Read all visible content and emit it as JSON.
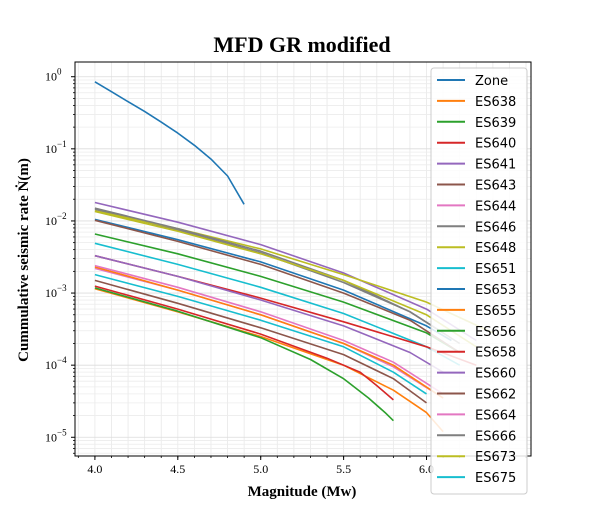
{
  "chart_data": {
    "type": "line",
    "title": "MFD GR modified",
    "xlabel": "Magnitude (Mw)",
    "ylabel": "Cummulative seismic rate Ṅ(m)",
    "xlim": [
      3.88,
      6.63
    ],
    "ylim": [
      5.5e-06,
      1.6
    ],
    "yscale": "log",
    "grid": true,
    "legend_position": "upper-right",
    "x_ticks": [
      "4.0",
      "4.5",
      "5.0",
      "5.5",
      "6.0"
    ],
    "x_tick_values": [
      4.0,
      4.5,
      5.0,
      5.5,
      6.0
    ],
    "y_ticks": [
      {
        "base": "10",
        "exp": "0",
        "value": 1
      },
      {
        "base": "10",
        "exp": "−1",
        "value": 0.1
      },
      {
        "base": "10",
        "exp": "−2",
        "value": 0.01
      },
      {
        "base": "10",
        "exp": "−3",
        "value": 0.001
      },
      {
        "base": "10",
        "exp": "−4",
        "value": 0.0001
      },
      {
        "base": "10",
        "exp": "−5",
        "value": 1e-05
      }
    ],
    "series": [
      {
        "name": "Zone",
        "color": "#1f77b4",
        "x": [
          4.0,
          4.1,
          4.2,
          4.3,
          4.4,
          4.5,
          4.6,
          4.7,
          4.8,
          4.9
        ],
        "y": [
          0.85,
          0.62,
          0.45,
          0.33,
          0.235,
          0.165,
          0.112,
          0.072,
          0.042,
          0.017
        ]
      },
      {
        "name": "ES638",
        "color": "#ff7f0e",
        "x": [
          4.0,
          4.5,
          5.0,
          5.5,
          5.8,
          6.0,
          6.1
        ],
        "y": [
          0.00115,
          0.00055,
          0.00025,
          0.0001,
          4.5e-05,
          2.2e-05,
          1.2e-05
        ]
      },
      {
        "name": "ES639",
        "color": "#2ca02c",
        "x": [
          4.0,
          4.5,
          5.0,
          5.3,
          5.5,
          5.65,
          5.75,
          5.8
        ],
        "y": [
          0.00118,
          0.00056,
          0.00024,
          0.00012,
          6.5e-05,
          3.5e-05,
          2.2e-05,
          1.7e-05
        ]
      },
      {
        "name": "ES640",
        "color": "#d62728",
        "x": [
          4.0,
          4.5,
          5.0,
          5.4,
          5.6,
          5.7,
          5.8
        ],
        "y": [
          0.00125,
          0.0006,
          0.00027,
          0.000125,
          8e-05,
          5.2e-05,
          3.3e-05
        ]
      },
      {
        "name": "ES641",
        "color": "#9467bd",
        "x": [
          4.0,
          4.5,
          5.0,
          5.5,
          6.0,
          6.3
        ],
        "y": [
          0.018,
          0.0096,
          0.0047,
          0.0019,
          0.0006,
          0.00022
        ]
      },
      {
        "name": "ES643",
        "color": "#8c564b",
        "x": [
          4.0,
          4.5,
          5.0,
          5.5,
          5.8,
          6.0
        ],
        "y": [
          0.0015,
          0.00072,
          0.00033,
          0.00014,
          6.5e-05,
          3e-05
        ]
      },
      {
        "name": "ES644",
        "color": "#e377c2",
        "x": [
          4.0,
          4.5,
          5.0,
          5.5,
          5.8,
          6.1
        ],
        "y": [
          0.0022,
          0.0011,
          0.0005,
          0.0002,
          9.5e-05,
          3.5e-05
        ]
      },
      {
        "name": "ES646",
        "color": "#7f7f7f",
        "x": [
          4.0,
          4.5,
          5.0,
          5.5,
          5.9,
          6.1
        ],
        "y": [
          0.0145,
          0.0075,
          0.0036,
          0.0014,
          0.00055,
          0.00028
        ]
      },
      {
        "name": "ES648",
        "color": "#bcbd22",
        "x": [
          4.0,
          4.5,
          5.0,
          5.5,
          6.0,
          6.4
        ],
        "y": [
          0.0138,
          0.0078,
          0.0041,
          0.0018,
          0.00075,
          0.00028
        ]
      },
      {
        "name": "ES651",
        "color": "#17becf",
        "x": [
          4.0,
          4.5,
          5.0,
          5.5,
          6.0,
          6.2
        ],
        "y": [
          0.0049,
          0.0025,
          0.0012,
          0.00052,
          0.00018,
          0.0001
        ]
      },
      {
        "name": "ES653",
        "color": "#1f77b4",
        "x": [
          4.0,
          4.5,
          5.0,
          5.5,
          6.0,
          6.15
        ],
        "y": [
          0.0105,
          0.0055,
          0.0027,
          0.0011,
          0.00035,
          0.00022
        ]
      },
      {
        "name": "ES655",
        "color": "#ff7f0e",
        "x": [
          4.0,
          4.5,
          5.0,
          5.5,
          5.8,
          6.1
        ],
        "y": [
          0.0023,
          0.0011,
          0.0005,
          0.0002,
          0.0001,
          3.5e-05
        ]
      },
      {
        "name": "ES656",
        "color": "#2ca02c",
        "x": [
          4.0,
          4.5,
          5.0,
          5.5,
          6.0,
          6.2
        ],
        "y": [
          0.0066,
          0.0035,
          0.0017,
          0.00075,
          0.00028,
          0.00015
        ]
      },
      {
        "name": "ES658",
        "color": "#d62728",
        "x": [
          4.0,
          4.5,
          5.0,
          5.5,
          6.0,
          6.3
        ],
        "y": [
          0.0033,
          0.0017,
          0.00085,
          0.0004,
          0.00018,
          0.0001
        ]
      },
      {
        "name": "ES660",
        "color": "#9467bd",
        "x": [
          4.0,
          4.5,
          5.0,
          5.5,
          5.9,
          6.1
        ],
        "y": [
          0.0033,
          0.0017,
          0.0008,
          0.00035,
          0.00015,
          8e-05
        ]
      },
      {
        "name": "ES662",
        "color": "#8c564b",
        "x": [
          4.0,
          4.5,
          5.0,
          5.5,
          5.9,
          6.2
        ],
        "y": [
          0.0102,
          0.0052,
          0.0025,
          0.001,
          0.00042,
          0.00015
        ]
      },
      {
        "name": "ES664",
        "color": "#e377c2",
        "x": [
          4.0,
          4.5,
          5.0,
          5.5,
          5.8,
          6.1
        ],
        "y": [
          0.0024,
          0.0012,
          0.00055,
          0.00022,
          0.00011,
          4e-05
        ]
      },
      {
        "name": "ES666",
        "color": "#7f7f7f",
        "x": [
          4.0,
          4.5,
          5.0,
          5.5,
          5.9,
          6.2
        ],
        "y": [
          0.015,
          0.0078,
          0.0038,
          0.0015,
          0.00055,
          0.0002
        ]
      },
      {
        "name": "ES673",
        "color": "#bcbd22",
        "x": [
          4.0,
          4.5,
          5.0,
          5.5,
          6.0,
          6.3
        ],
        "y": [
          0.0135,
          0.0072,
          0.0035,
          0.0015,
          0.0005,
          0.00018
        ]
      },
      {
        "name": "ES675",
        "color": "#17becf",
        "x": [
          4.0,
          4.5,
          5.0,
          5.5,
          5.8,
          6.0
        ],
        "y": [
          0.0018,
          0.0009,
          0.00042,
          0.00018,
          8e-05,
          4e-05
        ]
      }
    ]
  }
}
